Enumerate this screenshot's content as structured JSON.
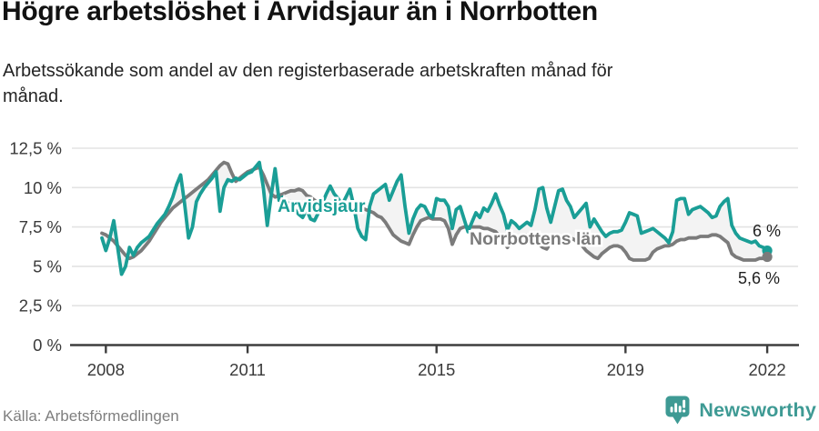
{
  "header": {
    "title": "Högre arbetslöshet i Arvidsjaur än i Norrbotten",
    "subtitle": "Arbetssökande som andel av den registerbaserade arbetskraften månad för månad.",
    "subtitle_lines": [
      "Arbetssökande som andel av den registerbaserade arbetskraften månad för",
      "månad."
    ]
  },
  "chart_data": {
    "type": "line",
    "unit": "%",
    "x_start": "2008-01",
    "x_end": "2022-02",
    "x_tick_labels": [
      "2008",
      "2011",
      "2015",
      "2019",
      "2022"
    ],
    "x_tick_years": [
      2008,
      2011,
      2015,
      2019,
      2022
    ],
    "y_tick_labels": [
      "12,5 %",
      "10 %",
      "7,5 %",
      "5 %",
      "2,5 %",
      "0 %"
    ],
    "y_tick_values": [
      12.5,
      10,
      7.5,
      5,
      2.5,
      0
    ],
    "ylim": [
      0,
      12.5
    ],
    "grid": "horizontal",
    "band_fill": "#f3f3f3",
    "series": [
      {
        "name": "Arvidsjaur",
        "color": "#1a9e96",
        "end_label": "6 %",
        "end_value": 6.0,
        "values": [
          6.8,
          6.0,
          6.8,
          7.9,
          6.2,
          4.5,
          5.0,
          6.2,
          5.7,
          6.2,
          6.5,
          6.7,
          6.9,
          7.3,
          7.7,
          8.0,
          8.3,
          8.8,
          9.4,
          10.2,
          10.8,
          9.0,
          6.8,
          7.5,
          9.1,
          9.6,
          10.0,
          10.3,
          10.6,
          11.0,
          8.5,
          10.0,
          10.5,
          10.4,
          10.6,
          10.5,
          10.7,
          10.9,
          11.0,
          11.3,
          11.6,
          10.0,
          7.6,
          9.5,
          11.2,
          9.2,
          9.4,
          8.8,
          9.1,
          8.6,
          8.3,
          8.1,
          8.6,
          8.0,
          7.9,
          8.4,
          9.0,
          9.6,
          10.1,
          9.6,
          9.3,
          8.9,
          9.4,
          9.9,
          8.8,
          7.4,
          6.9,
          6.7,
          8.8,
          9.6,
          9.8,
          10.0,
          10.2,
          9.2,
          9.8,
          10.4,
          10.8,
          8.8,
          7.1,
          8.0,
          8.6,
          8.9,
          8.8,
          8.3,
          8.1,
          9.3,
          9.2,
          9.2,
          8.8,
          7.4,
          8.6,
          8.8,
          8.0,
          7.2,
          7.8,
          8.4,
          8.1,
          8.7,
          8.5,
          9.0,
          9.6,
          8.9,
          8.3,
          7.3,
          7.9,
          7.7,
          7.4,
          7.6,
          7.8,
          7.6,
          8.6,
          9.9,
          10.0,
          8.7,
          7.8,
          8.8,
          9.8,
          9.9,
          9.2,
          8.8,
          8.1,
          8.4,
          8.7,
          9.0,
          7.5,
          8.0,
          7.6,
          7.2,
          6.9,
          7.1,
          7.2,
          7.2,
          7.3,
          7.8,
          8.4,
          8.3,
          8.2,
          7.1,
          7.2,
          7.3,
          7.4,
          7.2,
          7.0,
          6.8,
          6.5,
          7.2,
          9.2,
          9.3,
          9.3,
          8.3,
          8.6,
          8.7,
          8.8,
          8.6,
          8.4,
          8.1,
          8.2,
          8.8,
          9.1,
          9.3,
          7.6,
          7.1,
          6.8,
          6.7,
          6.6,
          6.5,
          6.6,
          6.3,
          6.2,
          6.0
        ]
      },
      {
        "name": "Norrbottens län",
        "color": "#7b7b7b",
        "end_label": "5,6 %",
        "end_value": 5.6,
        "values": [
          7.1,
          7.0,
          6.8,
          6.6,
          6.3,
          6.0,
          5.7,
          5.5,
          5.6,
          5.8,
          6.0,
          6.3,
          6.6,
          7.0,
          7.4,
          7.8,
          8.1,
          8.4,
          8.7,
          8.9,
          9.1,
          9.3,
          9.5,
          9.7,
          9.9,
          10.1,
          10.3,
          10.5,
          10.8,
          11.1,
          11.4,
          11.6,
          11.5,
          10.9,
          10.4,
          10.6,
          10.8,
          11.0,
          11.1,
          11.2,
          11.3,
          10.8,
          10.2,
          9.6,
          9.4,
          9.5,
          9.6,
          9.7,
          9.8,
          9.8,
          9.9,
          9.8,
          9.5,
          9.4,
          9.2,
          9.0,
          8.9,
          8.8,
          8.8,
          8.7,
          8.6,
          8.6,
          8.7,
          8.8,
          8.8,
          8.7,
          8.7,
          8.6,
          8.5,
          8.4,
          8.2,
          8.1,
          7.8,
          7.4,
          7.0,
          6.8,
          6.6,
          6.5,
          6.4,
          7.0,
          7.5,
          7.9,
          8.0,
          8.1,
          8.0,
          8.0,
          8.0,
          7.9,
          7.4,
          6.4,
          7.0,
          7.4,
          7.5,
          7.5,
          7.5,
          7.5,
          7.5,
          7.4,
          7.4,
          7.3,
          7.2,
          6.9,
          6.6,
          6.2,
          6.6,
          6.8,
          6.9,
          7.0,
          7.0,
          6.9,
          6.6,
          6.4,
          6.2,
          6.1,
          6.5,
          6.8,
          6.9,
          6.9,
          6.9,
          6.8,
          6.7,
          6.5,
          6.3,
          6.0,
          5.8,
          5.6,
          5.5,
          5.8,
          6.0,
          6.2,
          6.3,
          6.3,
          6.2,
          5.9,
          5.5,
          5.4,
          5.4,
          5.4,
          5.4,
          5.5,
          5.9,
          6.1,
          6.2,
          6.3,
          6.3,
          6.4,
          6.6,
          6.7,
          6.7,
          6.8,
          6.8,
          6.8,
          6.9,
          6.9,
          6.9,
          7.0,
          7.0,
          6.9,
          6.7,
          6.5,
          5.8,
          5.6,
          5.5,
          5.4,
          5.4,
          5.4,
          5.4,
          5.5,
          5.5,
          5.6
        ]
      }
    ]
  },
  "footer": {
    "source": "Källa: Arbetsförmedlingen",
    "brand": "Newsworthy"
  },
  "colors": {
    "accent": "#1a9e96",
    "gray_series": "#7b7b7b",
    "brand_teal": "#3e9a94",
    "axis": "#3d3d3d",
    "grid": "#e3e3e3",
    "band": "#f3f3f3",
    "text": "#121212",
    "muted": "#7f7f7f"
  }
}
